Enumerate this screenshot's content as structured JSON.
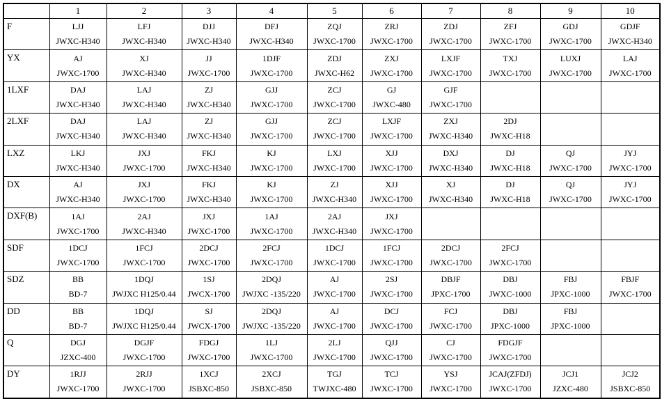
{
  "table": {
    "header": [
      "1",
      "2",
      "3",
      "4",
      "5",
      "6",
      "7",
      "8",
      "9",
      "10"
    ],
    "rows": [
      {
        "label": "F",
        "cells": [
          [
            "LJJ",
            "JWXC-H340"
          ],
          [
            "LFJ",
            "JWXC-H340"
          ],
          [
            "DJJ",
            "JWXC-H340"
          ],
          [
            "DFJ",
            "JWXC-H340"
          ],
          [
            "ZQJ",
            "JWXC-1700"
          ],
          [
            "ZRJ",
            "JWXC-1700"
          ],
          [
            "ZDJ",
            "JWXC-1700"
          ],
          [
            "ZFJ",
            "JWXC-1700"
          ],
          [
            "GDJ",
            "JWXC-1700"
          ],
          [
            "GDJF",
            "JWXC-H340"
          ]
        ]
      },
      {
        "label": "YX",
        "cells": [
          [
            "AJ",
            "JWXC-1700"
          ],
          [
            "XJ",
            "JWXC-H340"
          ],
          [
            "JJ",
            "JWXC-1700"
          ],
          [
            "1DJF",
            "JWXC-1700"
          ],
          [
            "ZDJ",
            "JWXC-H62"
          ],
          [
            "ZXJ",
            "JWXC-1700"
          ],
          [
            "LXJF",
            "JWXC-1700"
          ],
          [
            "TXJ",
            "JWXC-1700"
          ],
          [
            "LUXJ",
            "JWXC-1700"
          ],
          [
            "LAJ",
            "JWXC-1700"
          ]
        ]
      },
      {
        "label": "1LXF",
        "cells": [
          [
            "DAJ",
            "JWXC-H340"
          ],
          [
            "LAJ",
            "JWXC-H340"
          ],
          [
            "ZJ",
            "JWXC-H340"
          ],
          [
            "GJJ",
            "JWXC-1700"
          ],
          [
            "ZCJ",
            "JWXC-1700"
          ],
          [
            "GJ",
            "JWXC-480"
          ],
          [
            "GJF",
            "JWXC-1700"
          ],
          null,
          null,
          null
        ]
      },
      {
        "label": "2LXF",
        "cells": [
          [
            "DAJ",
            "JWXC-H340"
          ],
          [
            "LAJ",
            "JWXC-H340"
          ],
          [
            "ZJ",
            "JWXC-H340"
          ],
          [
            "GJJ",
            "JWXC-1700"
          ],
          [
            "ZCJ",
            "JWXC-1700"
          ],
          [
            "LXJF",
            "JWXC-1700"
          ],
          [
            "ZXJ",
            "JWXC-H340"
          ],
          [
            "2DJ",
            "JWXC-H18"
          ],
          null,
          null
        ]
      },
      {
        "label": "LXZ",
        "cells": [
          [
            "LKJ",
            "JWXC-H340"
          ],
          [
            "JXJ",
            "JWXC-1700"
          ],
          [
            "FKJ",
            "JWXC-H340"
          ],
          [
            "KJ",
            "JWXC-1700"
          ],
          [
            "LXJ",
            "JWXC-1700"
          ],
          [
            "XJJ",
            "JWXC-1700"
          ],
          [
            "DXJ",
            "JWXC-H340"
          ],
          [
            "DJ",
            "JWXC-H18"
          ],
          [
            "QJ",
            "JWXC-1700"
          ],
          [
            "JYJ",
            "JWXC-1700"
          ]
        ]
      },
      {
        "label": "DX",
        "cells": [
          [
            "AJ",
            "JWXC-H340"
          ],
          [
            "JXJ",
            "JWXC-1700"
          ],
          [
            "FKJ",
            "JWXC-H340"
          ],
          [
            "KJ",
            "JWXC-1700"
          ],
          [
            "ZJ",
            "JWXC-H340"
          ],
          [
            "XJJ",
            "JWXC-1700"
          ],
          [
            "XJ",
            "JWXC-H340"
          ],
          [
            "DJ",
            "JWXC-H18"
          ],
          [
            "QJ",
            "JWXC-1700"
          ],
          [
            "JYJ",
            "JWXC-1700"
          ]
        ]
      },
      {
        "label": "DXF(B)",
        "cells": [
          [
            "1AJ",
            "JWXC-1700"
          ],
          [
            "2AJ",
            "JWXC-H340"
          ],
          [
            "JXJ",
            "JWXC-1700"
          ],
          [
            "1AJ",
            "JWXC-1700"
          ],
          [
            "2AJ",
            "JWXC-H340"
          ],
          [
            "JXJ",
            "JWXC-1700"
          ],
          null,
          null,
          null,
          null
        ]
      },
      {
        "label": "SDF",
        "cells": [
          [
            "1DCJ",
            "JWXC-1700"
          ],
          [
            "1FCJ",
            "JWXC-1700"
          ],
          [
            "2DCJ",
            "JWXC-1700"
          ],
          [
            "2FCJ",
            "JWXC-1700"
          ],
          [
            "1DCJ",
            "JWXC-1700"
          ],
          [
            "1FCJ",
            "JWXC-1700"
          ],
          [
            "2DCJ",
            "JWXC-1700"
          ],
          [
            "2FCJ",
            "JWXC-1700"
          ],
          null,
          null
        ]
      },
      {
        "label": "SDZ",
        "cells": [
          [
            "BB",
            "BD-7"
          ],
          [
            "1DQJ",
            "JWJXC H125/0.44"
          ],
          [
            "1SJ",
            "JWCX-1700"
          ],
          [
            "2DQJ",
            "JWJXC -135/220"
          ],
          [
            "AJ",
            "JWXC-1700"
          ],
          [
            "2SJ",
            "JWXC-1700"
          ],
          [
            "DBJF",
            "JPXC-1700"
          ],
          [
            "DBJ",
            "JWXC-1000"
          ],
          [
            "FBJ",
            "JPXC-1000"
          ],
          [
            "FBJF",
            "JWXC-1700"
          ]
        ]
      },
      {
        "label": "DD",
        "cells": [
          [
            "BB",
            "BD-7"
          ],
          [
            "1DQJ",
            "JWJXC H125/0.44"
          ],
          [
            "SJ",
            "JWCX-1700"
          ],
          [
            "2DQJ",
            "JWJXC -135/220"
          ],
          [
            "AJ",
            "JWXC-1700"
          ],
          [
            "DCJ",
            "JWXC-1700"
          ],
          [
            "FCJ",
            "JWXC-1700"
          ],
          [
            "DBJ",
            "JPXC-1000"
          ],
          [
            "FBJ",
            "JPXC-1000"
          ],
          null
        ]
      },
      {
        "label": "Q",
        "cells": [
          [
            "DGJ",
            "JZXC-400"
          ],
          [
            "DGJF",
            "JWXC-1700"
          ],
          [
            "FDGJ",
            "JWXC-1700"
          ],
          [
            "1LJ",
            "JWXC-1700"
          ],
          [
            "2LJ",
            "JWXC-1700"
          ],
          [
            "QJJ",
            "JWXC-1700"
          ],
          [
            "CJ",
            "JWXC-1700"
          ],
          [
            "FDGJF",
            "JWXC-1700"
          ],
          null,
          null
        ]
      },
      {
        "label": "DY",
        "cells": [
          [
            "1RJJ",
            "JWXC-1700"
          ],
          [
            "2RJJ",
            "JWXC-1700"
          ],
          [
            "1XCJ",
            "JSBXC-850"
          ],
          [
            "2XCJ",
            "JSBXC-850"
          ],
          [
            "TGJ",
            "TWJXC-480"
          ],
          [
            "TCJ",
            "JWXC-1700"
          ],
          [
            "YSJ",
            "JWXC-1700"
          ],
          [
            "JCAJ(ZFDJ)",
            "JWXC-1700"
          ],
          [
            "JCJ1",
            "JZXC-480"
          ],
          [
            "JCJ2",
            "JSBXC-850"
          ]
        ]
      }
    ]
  }
}
